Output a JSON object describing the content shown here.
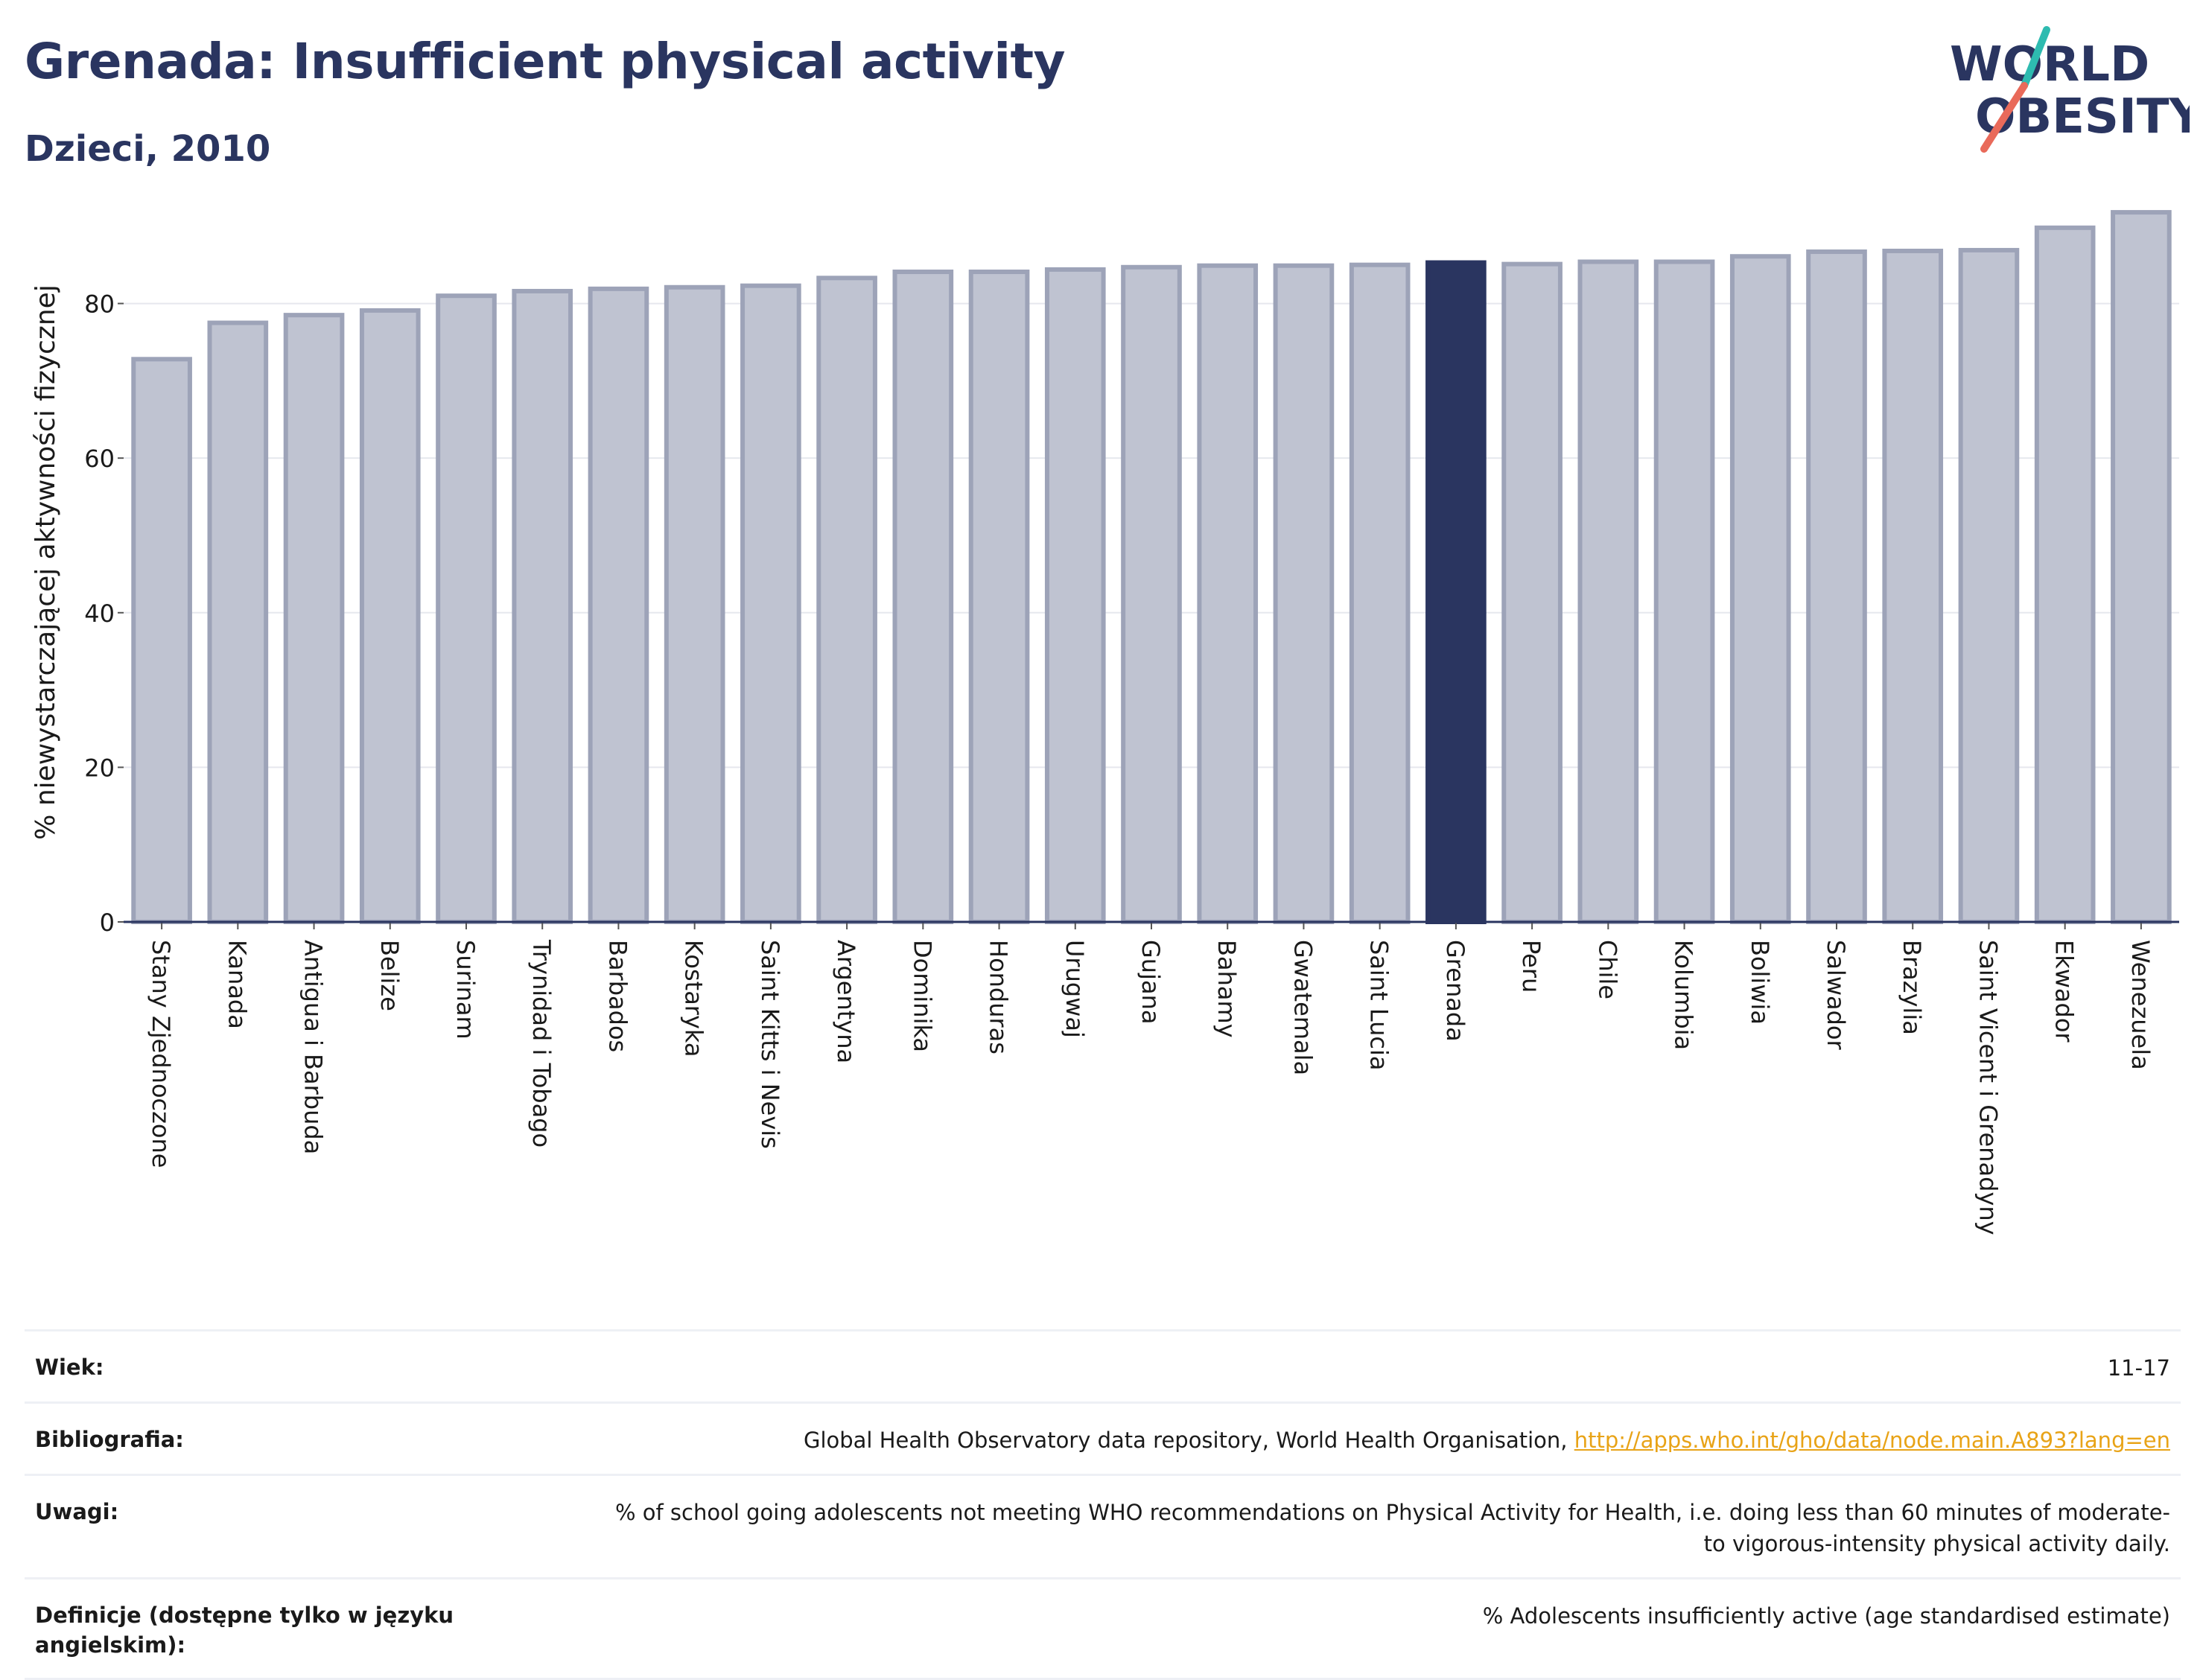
{
  "header": {
    "title": "Grenada: Insufficient physical activity",
    "subtitle": "Dzieci, 2010",
    "logo_line1": "WORLD",
    "logo_line2": "OBESITY"
  },
  "chart_data": {
    "type": "bar",
    "ylabel": "% niewystarczającej aktywności fizycznej",
    "xlabel": "",
    "ylim": [
      0,
      92
    ],
    "yticks": [
      0,
      20,
      40,
      60,
      80
    ],
    "grid": true,
    "highlight": "Grenada",
    "colors": {
      "bar": "#bfc3d1",
      "bar_edge": "#9da3b8",
      "highlight": "#2a3560",
      "axis": "#2a3560",
      "grid": "#e6e8ee"
    },
    "categories": [
      "Stany Zjednoczone",
      "Kanada",
      "Antigua i Barbuda",
      "Belize",
      "Surinam",
      "Trynidad i Tobago",
      "Barbados",
      "Kostaryka",
      "Saint Kitts i Nevis",
      "Argentyna",
      "Dominika",
      "Honduras",
      "Urugwaj",
      "Gujana",
      "Bahamy",
      "Gwatemala",
      "Saint Lucia",
      "Grenada",
      "Peru",
      "Chile",
      "Kolumbia",
      "Boliwia",
      "Salwador",
      "Brazylia",
      "Saint Vicent i Grenadyny",
      "Ekwador",
      "Wenezuela"
    ],
    "values": [
      72.8,
      77.5,
      78.5,
      79.1,
      81.0,
      81.6,
      81.9,
      82.1,
      82.3,
      83.3,
      84.1,
      84.1,
      84.4,
      84.7,
      84.9,
      84.9,
      85.0,
      85.3,
      85.1,
      85.4,
      85.4,
      86.1,
      86.7,
      86.8,
      86.9,
      89.8,
      91.8
    ]
  },
  "meta": {
    "age_label": "Wiek:",
    "age_value": "11-17",
    "biblio_label": "Bibliografia:",
    "biblio_text": "Global Health Observatory data repository, World Health Organisation, ",
    "biblio_link": "http://apps.who.int/gho/data/node.main.A893?lang=en",
    "notes_label": "Uwagi:",
    "notes_value": "% of school going adolescents not meeting WHO recommendations on Physical Activity for Health, i.e. doing less than 60 minutes of moderate- to vigorous-intensity physical activity daily.",
    "def_label": "Definicje (dostępne tylko w języku angielskim):",
    "def_value": "% Adolescents insufficiently active (age standardised estimate)"
  }
}
